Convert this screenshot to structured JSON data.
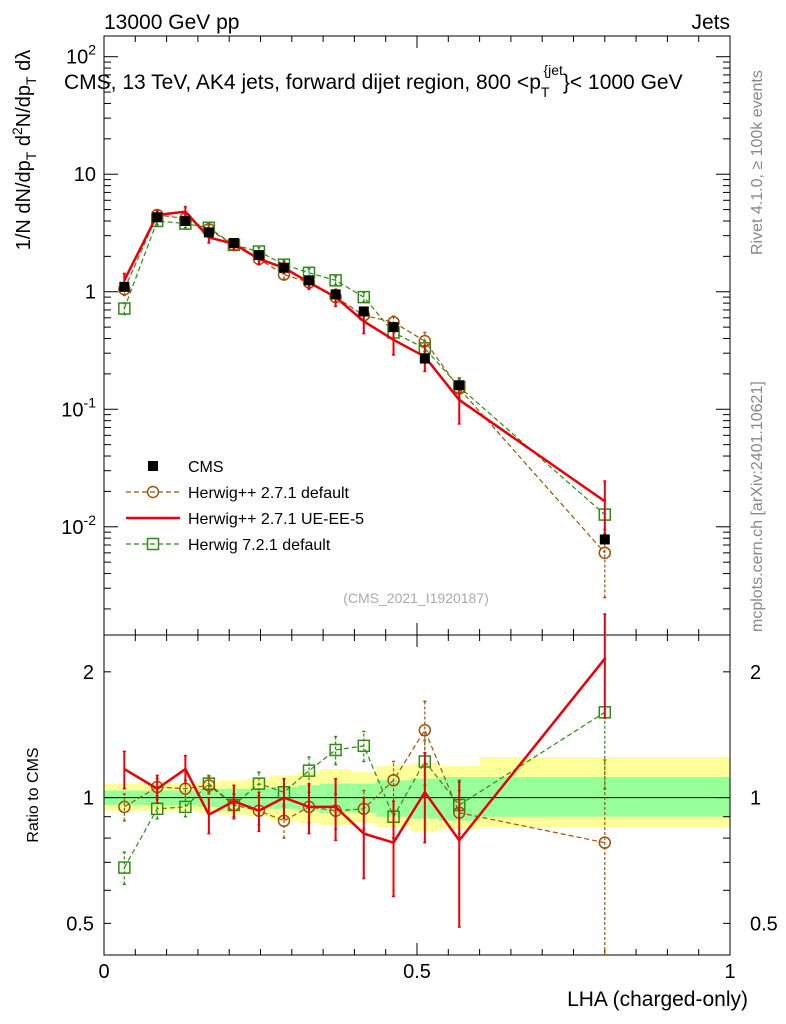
{
  "header": {
    "left": "13000 GeV pp",
    "right": "Jets",
    "title": "CMS, 13 TeV, AK4 jets, forward dijet region, 800 <p",
    "title_sub": "T",
    "title_sup": "{jet",
    "title_end": "}< 1000 GeV"
  },
  "side_labels": {
    "rivet": "Rivet 4.1.0, ≥ 100k events",
    "mcplots": "mcplots.cern.ch [arXiv:2401.10621]"
  },
  "watermark": "(CMS_2021_I1920187)",
  "ylabel_main_text": "1/N dN/dp_T d^2N/dp_T dλ",
  "ylabel_ratio": "Ratio to CMS",
  "xlabel": "LHA (charged-only)",
  "colors": {
    "data": "#000000",
    "herwig271": "#a0520a",
    "ueee5": "#e8000a",
    "herwig721": "#2e8b14",
    "band_inner": "#99ff99",
    "band_outer": "#ffff99"
  },
  "chart_data": [
    {
      "type": "line",
      "panel": "main",
      "yscale": "log",
      "xlim": [
        0,
        1
      ],
      "ylim": [
        0.0012,
        150
      ],
      "y_ticks": [
        {
          "value": 0.01,
          "label": "10",
          "exp": "-2"
        },
        {
          "value": 0.1,
          "label": "10",
          "exp": "-1"
        },
        {
          "value": 1,
          "label": "1",
          "exp": ""
        },
        {
          "value": 10,
          "label": "10",
          "exp": ""
        },
        {
          "value": 100,
          "label": "10",
          "exp": "2"
        }
      ],
      "series": [
        {
          "name": "CMS",
          "key": "cms",
          "style": "marker-square",
          "x": [
            0.0325,
            0.085,
            0.13,
            0.1675,
            0.2075,
            0.2475,
            0.2875,
            0.3275,
            0.37,
            0.415,
            0.4625,
            0.5125,
            0.5675,
            0.8
          ],
          "y": [
            1.1,
            4.3,
            4.0,
            3.2,
            2.6,
            2.05,
            1.6,
            1.25,
            0.95,
            0.68,
            0.5,
            0.27,
            0.16,
            0.0078
          ]
        },
        {
          "name": "Herwig++ 2.7.1 default",
          "key": "herwig271",
          "style": "marker-circle",
          "x": [
            0.0325,
            0.085,
            0.13,
            0.1675,
            0.2075,
            0.2475,
            0.2875,
            0.3275,
            0.37,
            0.415,
            0.4625,
            0.5125,
            0.5675,
            0.8
          ],
          "y": [
            1.05,
            4.5,
            4.2,
            3.4,
            2.5,
            1.9,
            1.4,
            1.2,
            0.9,
            0.63,
            0.55,
            0.38,
            0.15,
            0.006
          ],
          "err": [
            0.12,
            0.3,
            0.3,
            0.25,
            0.2,
            0.15,
            0.12,
            0.1,
            0.08,
            0.06,
            0.07,
            0.07,
            0.03,
            0.0035
          ]
        },
        {
          "name": "Herwig++ 2.7.1 UE-EE-5",
          "key": "ueee5",
          "style": "line",
          "x": [
            0.0325,
            0.085,
            0.13,
            0.1675,
            0.2075,
            0.2475,
            0.2875,
            0.3275,
            0.37,
            0.415,
            0.4625,
            0.5125,
            0.5675,
            0.8
          ],
          "y": [
            1.25,
            4.5,
            4.8,
            2.9,
            2.55,
            1.9,
            1.6,
            1.2,
            0.9,
            0.56,
            0.39,
            0.28,
            0.12,
            0.0165
          ],
          "err": [
            0.18,
            0.4,
            0.5,
            0.3,
            0.25,
            0.2,
            0.18,
            0.15,
            0.15,
            0.12,
            0.1,
            0.07,
            0.045,
            0.008
          ]
        },
        {
          "name": "Herwig 7.2.1 default",
          "key": "herwig721",
          "style": "marker-open-square",
          "x": [
            0.0325,
            0.085,
            0.13,
            0.1675,
            0.2075,
            0.2475,
            0.2875,
            0.3275,
            0.37,
            0.415,
            0.4625,
            0.5125,
            0.5675,
            0.8
          ],
          "y": [
            0.72,
            4.0,
            3.8,
            3.5,
            2.5,
            2.2,
            1.7,
            1.45,
            1.25,
            0.9,
            0.45,
            0.33,
            0.155,
            0.0127
          ],
          "err": [
            0.08,
            0.3,
            0.3,
            0.25,
            0.2,
            0.17,
            0.14,
            0.12,
            0.1,
            0.08,
            0.06,
            0.05,
            0.03,
            0.004
          ]
        }
      ]
    },
    {
      "type": "line",
      "panel": "ratio",
      "yscale": "log",
      "xlim": [
        0,
        1
      ],
      "ylim": [
        0.42,
        2.45
      ],
      "y_ticks": [
        {
          "value": 0.5,
          "label": "0.5"
        },
        {
          "value": 1,
          "label": "1"
        },
        {
          "value": 2,
          "label": "2"
        }
      ],
      "x_ticks": [
        {
          "value": 0,
          "label": "0"
        },
        {
          "value": 0.5,
          "label": "0.5"
        },
        {
          "value": 1,
          "label": "1"
        }
      ],
      "bins": [
        0,
        0.065,
        0.105,
        0.15,
        0.185,
        0.23,
        0.265,
        0.31,
        0.345,
        0.395,
        0.435,
        0.49,
        0.535,
        0.6,
        1.0
      ],
      "band_inner": [
        [
          0.96,
          1.04
        ],
        [
          0.96,
          1.04
        ],
        [
          0.96,
          1.04
        ],
        [
          0.95,
          1.05
        ],
        [
          0.95,
          1.05
        ],
        [
          0.95,
          1.05
        ],
        [
          0.94,
          1.06
        ],
        [
          0.93,
          1.07
        ],
        [
          0.92,
          1.08
        ],
        [
          0.92,
          1.08
        ],
        [
          0.9,
          1.1
        ],
        [
          0.89,
          1.11
        ],
        [
          0.88,
          1.12
        ],
        [
          0.9,
          1.12
        ]
      ],
      "band_outer": [
        [
          0.93,
          1.08
        ],
        [
          0.93,
          1.08
        ],
        [
          0.93,
          1.08
        ],
        [
          0.92,
          1.09
        ],
        [
          0.91,
          1.1
        ],
        [
          0.9,
          1.11
        ],
        [
          0.88,
          1.13
        ],
        [
          0.87,
          1.15
        ],
        [
          0.86,
          1.17
        ],
        [
          0.87,
          1.15
        ],
        [
          0.85,
          1.19
        ],
        [
          0.83,
          1.21
        ],
        [
          0.84,
          1.19
        ],
        [
          0.85,
          1.25
        ]
      ],
      "series": [
        {
          "name": "Herwig++ 2.7.1 default",
          "key": "herwig271",
          "style": "marker-circle",
          "x": [
            0.0325,
            0.085,
            0.13,
            0.1675,
            0.2075,
            0.2475,
            0.2875,
            0.3275,
            0.37,
            0.415,
            0.4625,
            0.5125,
            0.5675,
            0.8
          ],
          "y": [
            0.95,
            1.06,
            1.05,
            1.07,
            0.96,
            0.93,
            0.88,
            0.95,
            0.93,
            0.94,
            1.1,
            1.45,
            0.92,
            0.78
          ],
          "err": [
            0.07,
            0.05,
            0.05,
            0.05,
            0.06,
            0.07,
            0.08,
            0.08,
            0.09,
            0.1,
            0.12,
            0.25,
            0.12,
            0.45
          ]
        },
        {
          "name": "Herwig++ 2.7.1 UE-EE-5",
          "key": "ueee5",
          "style": "line",
          "x": [
            0.0325,
            0.085,
            0.13,
            0.1675,
            0.2075,
            0.2475,
            0.2875,
            0.3275,
            0.37,
            0.415,
            0.4625,
            0.5125,
            0.5675,
            0.8
          ],
          "y": [
            1.17,
            1.05,
            1.17,
            0.91,
            0.98,
            0.93,
            1.0,
            0.95,
            0.95,
            0.82,
            0.78,
            1.03,
            0.79,
            2.15
          ],
          "err": [
            0.12,
            0.08,
            0.09,
            0.09,
            0.09,
            0.1,
            0.11,
            0.13,
            0.16,
            0.18,
            0.2,
            0.25,
            0.3,
            0.6
          ]
        },
        {
          "name": "Herwig 7.2.1 default",
          "key": "herwig721",
          "style": "marker-open-square",
          "x": [
            0.0325,
            0.085,
            0.13,
            0.1675,
            0.2075,
            0.2475,
            0.2875,
            0.3275,
            0.37,
            0.415,
            0.4625,
            0.5125,
            0.5675,
            0.8
          ],
          "y": [
            0.68,
            0.94,
            0.95,
            1.08,
            0.96,
            1.08,
            1.03,
            1.16,
            1.3,
            1.33,
            0.9,
            1.22,
            0.96,
            1.6
          ],
          "err": [
            0.06,
            0.05,
            0.05,
            0.05,
            0.06,
            0.07,
            0.08,
            0.09,
            0.1,
            0.11,
            0.1,
            0.15,
            0.14,
            0.55
          ]
        }
      ]
    }
  ]
}
